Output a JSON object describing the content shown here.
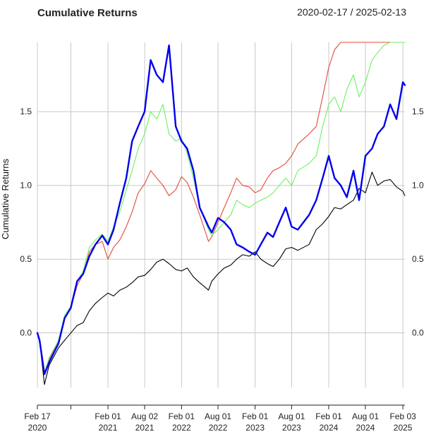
{
  "header": {
    "title": "Cumulative Returns",
    "date_range": "2020-02-17 / 2025-02-13"
  },
  "chart_data": {
    "type": "line",
    "title": "Cumulative Returns",
    "subtitle": "2020-02-17 / 2025-02-13",
    "xlabel": "",
    "ylabel": "Cumulative Returns",
    "x_start": "2020-02-17",
    "x_end": "2025-02-13",
    "ylim": [
      -0.37,
      1.97
    ],
    "yticks": [
      0.0,
      0.5,
      1.0,
      1.5
    ],
    "ytick_labels": [
      "0.0",
      "0.5",
      "1.0",
      "1.5"
    ],
    "y_axis_sides": "left-and-right",
    "grid": true,
    "legend": "none",
    "xticks": [
      {
        "date": "2020-02-17",
        "line1": "Feb 17",
        "line2": "2020"
      },
      {
        "date": "2020-08-01",
        "line1": "",
        "line2": ""
      },
      {
        "date": "2021-02-01",
        "line1": "Feb 01",
        "line2": "2021"
      },
      {
        "date": "2021-08-02",
        "line1": "Aug 02",
        "line2": "2021"
      },
      {
        "date": "2022-02-01",
        "line1": "Feb 01",
        "line2": "2022"
      },
      {
        "date": "2022-08-01",
        "line1": "Aug 01",
        "line2": "2022"
      },
      {
        "date": "2023-02-01",
        "line1": "Feb 01",
        "line2": "2023"
      },
      {
        "date": "2023-08-01",
        "line1": "Aug 01",
        "line2": "2023"
      },
      {
        "date": "2024-02-01",
        "line1": "Feb 01",
        "line2": "2024"
      },
      {
        "date": "2024-08-01",
        "line1": "Aug 01",
        "line2": "2024"
      },
      {
        "date": "2025-02-03",
        "line1": "Feb 03",
        "line2": "2025"
      }
    ],
    "series": [
      {
        "color": "#000000",
        "width": 1.1,
        "x": [
          "2020-02-17",
          "2020-02-28",
          "2020-03-23",
          "2020-04-15",
          "2020-06-01",
          "2020-07-01",
          "2020-08-01",
          "2020-09-01",
          "2020-10-01",
          "2020-11-01",
          "2020-12-01",
          "2021-01-04",
          "2021-02-01",
          "2021-03-01",
          "2021-04-01",
          "2021-05-03",
          "2021-06-01",
          "2021-07-01",
          "2021-08-02",
          "2021-09-01",
          "2021-10-01",
          "2021-11-01",
          "2021-12-01",
          "2022-01-03",
          "2022-02-01",
          "2022-03-01",
          "2022-04-01",
          "2022-05-02",
          "2022-06-15",
          "2022-07-01",
          "2022-08-01",
          "2022-09-01",
          "2022-10-03",
          "2022-11-01",
          "2022-12-01",
          "2023-01-03",
          "2023-02-01",
          "2023-03-01",
          "2023-04-03",
          "2023-05-01",
          "2023-06-01",
          "2023-07-03",
          "2023-08-01",
          "2023-09-01",
          "2023-10-27",
          "2023-12-01",
          "2024-01-02",
          "2024-02-01",
          "2024-03-01",
          "2024-04-01",
          "2024-05-01",
          "2024-06-03",
          "2024-07-01",
          "2024-08-01",
          "2024-09-03",
          "2024-10-01",
          "2024-11-01",
          "2024-12-02",
          "2025-01-02",
          "2025-02-03",
          "2025-02-13"
        ],
        "values": [
          0.0,
          -0.05,
          -0.35,
          -0.22,
          -0.1,
          -0.05,
          0.0,
          0.05,
          0.07,
          0.15,
          0.2,
          0.24,
          0.27,
          0.25,
          0.29,
          0.31,
          0.34,
          0.38,
          0.39,
          0.43,
          0.48,
          0.5,
          0.47,
          0.43,
          0.42,
          0.44,
          0.38,
          0.34,
          0.29,
          0.35,
          0.4,
          0.44,
          0.46,
          0.5,
          0.53,
          0.52,
          0.55,
          0.5,
          0.47,
          0.45,
          0.5,
          0.57,
          0.58,
          0.56,
          0.6,
          0.7,
          0.74,
          0.79,
          0.85,
          0.84,
          0.87,
          0.9,
          0.98,
          0.95,
          1.09,
          1.0,
          1.03,
          1.04,
          0.99,
          0.96,
          0.93
        ]
      },
      {
        "color": "#df4b3a",
        "width": 1.1,
        "x": [
          "2020-02-17",
          "2020-02-28",
          "2020-03-23",
          "2020-04-15",
          "2020-06-01",
          "2020-07-01",
          "2020-08-01",
          "2020-09-01",
          "2020-10-01",
          "2020-11-01",
          "2020-12-01",
          "2021-01-04",
          "2021-02-01",
          "2021-03-01",
          "2021-04-01",
          "2021-05-03",
          "2021-06-01",
          "2021-07-01",
          "2021-08-02",
          "2021-09-01",
          "2021-10-01",
          "2021-11-01",
          "2021-12-01",
          "2022-01-03",
          "2022-02-01",
          "2022-03-01",
          "2022-04-01",
          "2022-05-02",
          "2022-06-15",
          "2022-07-01",
          "2022-08-01",
          "2022-09-01",
          "2022-10-03",
          "2022-11-01",
          "2022-12-01",
          "2023-01-03",
          "2023-02-01",
          "2023-03-01",
          "2023-04-03",
          "2023-05-01",
          "2023-06-01",
          "2023-07-03",
          "2023-08-01",
          "2023-09-01",
          "2023-10-27",
          "2023-12-01",
          "2024-01-02",
          "2024-02-01",
          "2024-03-01",
          "2024-04-01",
          "2024-05-01",
          "2024-06-03",
          "2024-07-01",
          "2024-08-01",
          "2024-09-03",
          "2024-10-01",
          "2024-11-01",
          "2024-12-02",
          "2025-01-02",
          "2025-02-03",
          "2025-02-13"
        ],
        "values": [
          0.0,
          -0.05,
          -0.28,
          -0.18,
          -0.05,
          0.1,
          0.17,
          0.32,
          0.4,
          0.55,
          0.6,
          0.62,
          0.5,
          0.58,
          0.63,
          0.72,
          0.82,
          0.95,
          1.01,
          1.1,
          1.05,
          1.0,
          0.93,
          0.97,
          1.06,
          1.02,
          0.92,
          0.8,
          0.62,
          0.65,
          0.75,
          0.85,
          0.95,
          1.05,
          1.0,
          0.99,
          0.95,
          0.97,
          1.05,
          1.1,
          1.12,
          1.15,
          1.2,
          1.28,
          1.35,
          1.4,
          1.6,
          1.8,
          1.92,
          1.97,
          1.97,
          1.97,
          1.97,
          1.97,
          1.97,
          1.97,
          1.97,
          1.97,
          1.97,
          1.97,
          1.97
        ]
      },
      {
        "color": "#6bf25f",
        "width": 1.1,
        "x": [
          "2020-02-17",
          "2020-02-28",
          "2020-03-23",
          "2020-04-15",
          "2020-06-01",
          "2020-07-01",
          "2020-08-01",
          "2020-09-01",
          "2020-10-01",
          "2020-11-01",
          "2020-12-01",
          "2021-01-04",
          "2021-02-01",
          "2021-03-01",
          "2021-04-01",
          "2021-05-03",
          "2021-06-01",
          "2021-07-01",
          "2021-08-02",
          "2021-09-01",
          "2021-10-01",
          "2021-11-01",
          "2021-12-01",
          "2022-01-03",
          "2022-02-01",
          "2022-03-01",
          "2022-04-01",
          "2022-05-02",
          "2022-06-15",
          "2022-07-01",
          "2022-08-01",
          "2022-09-01",
          "2022-10-03",
          "2022-11-01",
          "2022-12-01",
          "2023-01-03",
          "2023-02-01",
          "2023-03-01",
          "2023-04-03",
          "2023-05-01",
          "2023-06-01",
          "2023-07-03",
          "2023-08-01",
          "2023-09-01",
          "2023-10-27",
          "2023-12-01",
          "2024-01-02",
          "2024-02-01",
          "2024-03-01",
          "2024-04-01",
          "2024-05-01",
          "2024-06-03",
          "2024-07-01",
          "2024-08-01",
          "2024-09-03",
          "2024-10-01",
          "2024-11-01",
          "2024-12-02",
          "2025-01-02",
          "2025-02-03",
          "2025-02-13"
        ],
        "values": [
          0.0,
          -0.05,
          -0.27,
          -0.17,
          -0.05,
          0.12,
          0.18,
          0.35,
          0.42,
          0.58,
          0.63,
          0.67,
          0.62,
          0.72,
          0.82,
          0.97,
          1.1,
          1.25,
          1.35,
          1.5,
          1.45,
          1.55,
          1.35,
          1.3,
          1.32,
          1.22,
          1.05,
          0.85,
          0.7,
          0.66,
          0.7,
          0.75,
          0.8,
          0.9,
          0.87,
          0.85,
          0.88,
          0.9,
          0.92,
          0.95,
          1.0,
          1.05,
          1.0,
          1.1,
          1.15,
          1.2,
          1.4,
          1.55,
          1.6,
          1.5,
          1.65,
          1.75,
          1.6,
          1.7,
          1.85,
          1.9,
          1.95,
          1.97,
          1.97,
          1.97,
          1.97
        ]
      },
      {
        "color": "#0000ee",
        "width": 2.4,
        "x": [
          "2020-02-17",
          "2020-02-28",
          "2020-03-23",
          "2020-04-15",
          "2020-06-01",
          "2020-07-01",
          "2020-08-01",
          "2020-09-01",
          "2020-10-01",
          "2020-11-01",
          "2020-12-01",
          "2021-01-04",
          "2021-02-01",
          "2021-03-01",
          "2021-04-01",
          "2021-05-03",
          "2021-06-01",
          "2021-07-01",
          "2021-08-02",
          "2021-09-01",
          "2021-10-01",
          "2021-11-01",
          "2021-12-01",
          "2022-01-03",
          "2022-02-01",
          "2022-03-01",
          "2022-04-01",
          "2022-05-02",
          "2022-06-15",
          "2022-07-01",
          "2022-08-01",
          "2022-09-01",
          "2022-10-03",
          "2022-11-01",
          "2022-12-01",
          "2023-01-03",
          "2023-02-01",
          "2023-03-01",
          "2023-04-03",
          "2023-05-01",
          "2023-06-01",
          "2023-07-03",
          "2023-08-01",
          "2023-09-01",
          "2023-10-27",
          "2023-12-01",
          "2024-01-02",
          "2024-02-01",
          "2024-03-01",
          "2024-04-01",
          "2024-05-01",
          "2024-06-03",
          "2024-07-01",
          "2024-08-01",
          "2024-09-03",
          "2024-10-01",
          "2024-11-01",
          "2024-12-02",
          "2025-01-02",
          "2025-02-03",
          "2025-02-13"
        ],
        "values": [
          0.0,
          -0.05,
          -0.28,
          -0.2,
          -0.07,
          0.1,
          0.17,
          0.35,
          0.4,
          0.52,
          0.6,
          0.66,
          0.6,
          0.7,
          0.88,
          1.05,
          1.3,
          1.4,
          1.5,
          1.85,
          1.75,
          1.7,
          1.95,
          1.4,
          1.3,
          1.25,
          1.1,
          0.85,
          0.72,
          0.68,
          0.78,
          0.75,
          0.7,
          0.6,
          0.58,
          0.55,
          0.53,
          0.6,
          0.68,
          0.65,
          0.75,
          0.85,
          0.72,
          0.7,
          0.8,
          0.9,
          1.05,
          1.2,
          1.05,
          1.0,
          0.92,
          1.1,
          0.9,
          1.2,
          1.25,
          1.35,
          1.4,
          1.55,
          1.45,
          1.7,
          1.68
        ]
      }
    ]
  }
}
